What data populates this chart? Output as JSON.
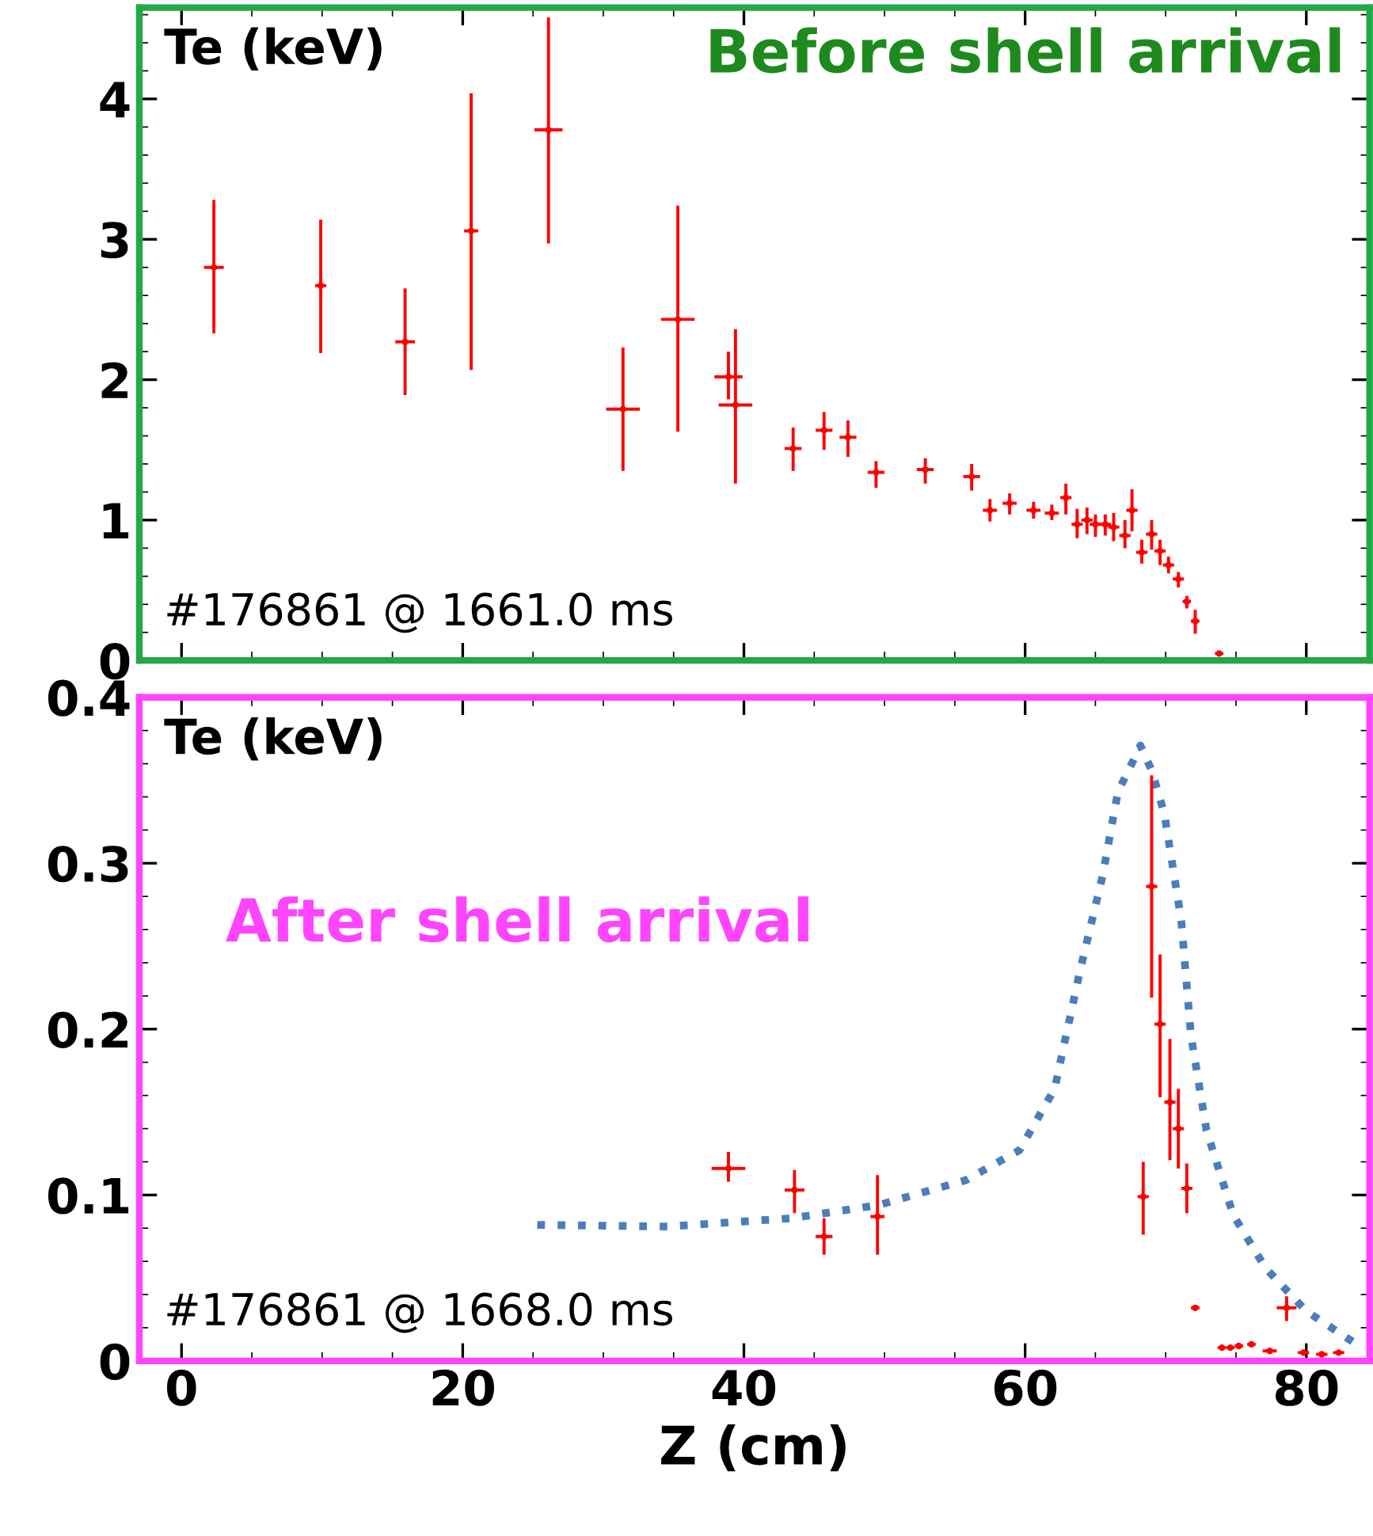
{
  "chart_data": [
    {
      "type": "scatter",
      "title": "Before shell arrival",
      "ylabel": "Te (keV)",
      "annotations": [
        "#176861 @ 1661.0 ms"
      ],
      "xlim": [
        -3,
        84.5
      ],
      "xticks": [
        0,
        20,
        40,
        60,
        80
      ],
      "ylim": [
        0,
        4.65
      ],
      "yticks": [
        0,
        1,
        2,
        3,
        4
      ],
      "tick_labels": "y",
      "grid": false,
      "series": [
        {
          "color": "#ff0000",
          "x": [
            2.3,
            9.9,
            15.9,
            20.6,
            26.1,
            31.4,
            35.3,
            38.9,
            39.4,
            43.5,
            45.7,
            47.4,
            49.4,
            52.9,
            56.2,
            57.5,
            58.9,
            60.6,
            61.9,
            62.9,
            63.7,
            64.4,
            65.0,
            65.7,
            66.3,
            67.1,
            67.6,
            68.3,
            69.0,
            69.6,
            70.2,
            70.9,
            71.5,
            72.1,
            73.8
          ],
          "values": [
            2.8,
            2.67,
            2.27,
            3.06,
            3.78,
            1.79,
            2.43,
            2.02,
            1.82,
            1.51,
            1.64,
            1.59,
            1.34,
            1.36,
            1.31,
            1.07,
            1.12,
            1.07,
            1.05,
            1.16,
            0.97,
            1.0,
            0.97,
            0.97,
            0.95,
            0.89,
            1.07,
            0.77,
            0.9,
            0.78,
            0.68,
            0.58,
            0.42,
            0.28,
            0.05
          ],
          "errors": [
            [
              2.33,
              3.28
            ],
            [
              2.19,
              3.14
            ],
            [
              1.89,
              2.65
            ],
            [
              2.07,
              4.04
            ],
            [
              2.97,
              4.58
            ],
            [
              1.35,
              2.23
            ],
            [
              1.63,
              3.24
            ],
            [
              1.86,
              2.2
            ],
            [
              1.26,
              2.36
            ],
            [
              1.35,
              1.66
            ],
            [
              1.5,
              1.77
            ],
            [
              1.45,
              1.71
            ],
            [
              1.23,
              1.42
            ],
            [
              1.26,
              1.44
            ],
            [
              1.21,
              1.4
            ],
            [
              0.99,
              1.15
            ],
            [
              1.04,
              1.19
            ],
            [
              1.01,
              1.13
            ],
            [
              1.0,
              1.11
            ],
            [
              1.04,
              1.26
            ],
            [
              0.87,
              1.08
            ],
            [
              0.9,
              1.09
            ],
            [
              0.88,
              1.04
            ],
            [
              0.89,
              1.04
            ],
            [
              0.85,
              1.05
            ],
            [
              0.8,
              1.0
            ],
            [
              0.92,
              1.22
            ],
            [
              0.69,
              0.86
            ],
            [
              0.79,
              1.0
            ],
            [
              0.68,
              0.86
            ],
            [
              0.62,
              0.74
            ],
            [
              0.52,
              0.63
            ],
            [
              0.37,
              0.46
            ],
            [
              0.19,
              0.36
            ],
            null
          ],
          "xerrors": [
            0.7,
            0.4,
            0.7,
            0.5,
            1.0,
            1.2,
            1.2,
            1.0,
            1.2,
            0.6,
            0.6,
            0.6,
            0.6,
            0.6,
            0.6,
            0.5,
            0.5,
            0.5,
            0.5,
            0.4,
            0.4,
            0.4,
            0.4,
            0.4,
            0.4,
            0.4,
            0.4,
            0.4,
            0.4,
            0.4,
            0.4,
            0.4,
            0.3,
            0.3,
            0.3
          ]
        }
      ]
    },
    {
      "type": "scatter",
      "title": "After shell arrival",
      "ylabel": "Te (keV)",
      "xlabel": "Z (cm)",
      "annotations": [
        "#176861 @ 1668.0 ms"
      ],
      "xlim": [
        -3,
        84.5
      ],
      "xticks": [
        0,
        20,
        40,
        60,
        80
      ],
      "ylim": [
        0,
        0.4
      ],
      "yticks": [
        0,
        0.1,
        0.2,
        0.3,
        0.4
      ],
      "grid": false,
      "series": [
        {
          "color": "#ff0000",
          "x": [
            38.9,
            43.6,
            45.7,
            49.5,
            68.4,
            69.0,
            69.6,
            70.3,
            70.9,
            71.5,
            72.1,
            74.0,
            74.6,
            75.2,
            76.1,
            77.4,
            78.6,
            79.8,
            81.1,
            82.3
          ],
          "values": [
            0.116,
            0.103,
            0.075,
            0.087,
            0.099,
            0.286,
            0.203,
            0.156,
            0.14,
            0.104,
            0.032,
            0.008,
            0.008,
            0.009,
            0.01,
            0.006,
            0.032,
            0.005,
            0.004,
            0.005
          ],
          "errors": [
            [
              0.108,
              0.126
            ],
            [
              0.089,
              0.115
            ],
            [
              0.064,
              0.086
            ],
            [
              0.064,
              0.112
            ],
            [
              0.076,
              0.12
            ],
            [
              0.219,
              0.353
            ],
            [
              0.159,
              0.245
            ],
            [
              0.121,
              0.194
            ],
            [
              0.116,
              0.164
            ],
            [
              0.089,
              0.119
            ],
            null,
            null,
            null,
            null,
            null,
            null,
            [
              0.024,
              0.039
            ],
            null,
            null,
            null
          ],
          "xerrors": [
            1.2,
            0.7,
            0.6,
            0.5,
            0.4,
            0.4,
            0.4,
            0.4,
            0.4,
            0.4,
            0.3,
            0.3,
            0.3,
            0.3,
            0.3,
            0.5,
            0.7,
            0.4,
            0.4,
            0.4
          ]
        },
        {
          "type": "line",
          "color": "#4a7ebb",
          "line_style": "dotted",
          "marker": "none",
          "x": [
            25.3,
            34.6,
            43.4,
            49.6,
            55.8,
            59.6,
            62.1,
            63.9,
            65.5,
            66.6,
            67.7,
            68.2,
            69.0,
            69.9,
            71.1,
            71.8,
            72.9,
            74.8,
            77.1,
            80.0,
            83.4
          ],
          "values": [
            0.082,
            0.081,
            0.086,
            0.094,
            0.109,
            0.127,
            0.164,
            0.235,
            0.292,
            0.343,
            0.362,
            0.371,
            0.356,
            0.33,
            0.266,
            0.196,
            0.139,
            0.088,
            0.056,
            0.03,
            0.011
          ]
        }
      ]
    }
  ]
}
